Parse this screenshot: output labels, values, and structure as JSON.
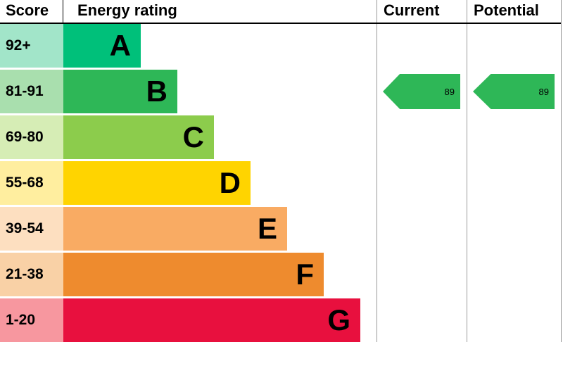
{
  "header": {
    "score_label": "Score",
    "energy_rating_label": "Energy rating",
    "current_label": "Current",
    "potential_label": "Potential"
  },
  "bands": [
    {
      "score": "92+",
      "letter": "A",
      "color": "#00c07a",
      "tint": "#a2e5c9"
    },
    {
      "score": "81-91",
      "letter": "B",
      "color": "#2eb757",
      "tint": "#a9dfae"
    },
    {
      "score": "69-80",
      "letter": "C",
      "color": "#8ccc4c",
      "tint": "#d6edb5"
    },
    {
      "score": "55-68",
      "letter": "D",
      "color": "#ffd400",
      "tint": "#ffee9f"
    },
    {
      "score": "39-54",
      "letter": "E",
      "color": "#f9ab63",
      "tint": "#fddfc0"
    },
    {
      "score": "21-38",
      "letter": "F",
      "color": "#ee8b2e",
      "tint": "#f9d1a6"
    },
    {
      "score": "1-20",
      "letter": "G",
      "color": "#e8103e",
      "tint": "#f7979f"
    }
  ],
  "current": {
    "value": "89",
    "band_letter": "B",
    "arrow_color": "#2eb757"
  },
  "potential": {
    "value": "89",
    "band_letter": "B",
    "arrow_color": "#2eb757"
  },
  "chart_data": {
    "type": "bar",
    "title": "Energy rating",
    "categories": [
      "A",
      "B",
      "C",
      "D",
      "E",
      "F",
      "G"
    ],
    "score_ranges": [
      "92+",
      "81-91",
      "69-80",
      "55-68",
      "39-54",
      "21-38",
      "1-20"
    ],
    "band_colors": [
      "#00c07a",
      "#2eb757",
      "#8ccc4c",
      "#ffd400",
      "#f9ab63",
      "#ee8b2e",
      "#e8103e"
    ],
    "legend_position": "none",
    "grid": false,
    "markers": [
      {
        "name": "Current",
        "value": 89,
        "band": "B"
      },
      {
        "name": "Potential",
        "value": 89,
        "band": "B"
      }
    ]
  }
}
